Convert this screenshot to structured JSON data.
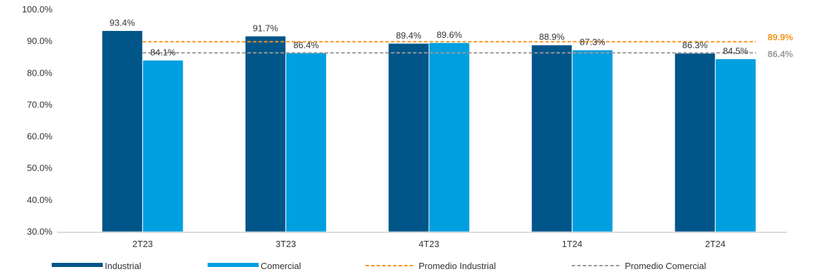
{
  "chart_data": {
    "type": "bar",
    "categories": [
      "2T23",
      "3T23",
      "4T23",
      "1T24",
      "2T24"
    ],
    "series": [
      {
        "name": "Industrial",
        "values": [
          93.4,
          91.7,
          89.4,
          88.9,
          86.3
        ],
        "labels": [
          "93.4%",
          "91.7%",
          "89.4%",
          "88.9%",
          "86.3%"
        ],
        "color": "#005589"
      },
      {
        "name": "Comercial",
        "values": [
          84.1,
          86.4,
          89.6,
          87.3,
          84.5
        ],
        "labels": [
          "84.1%",
          "86.4%",
          "89.6%",
          "87.3%",
          "84.5%"
        ],
        "color": "#009FE0"
      }
    ],
    "averages": [
      {
        "name": "Promedio Industrial",
        "value": 89.9,
        "label": "89.9%",
        "color": "#F7941D"
      },
      {
        "name": "Promedio Comercial",
        "value": 86.4,
        "label": "86.4%",
        "color": "#999999"
      }
    ],
    "ylim": [
      30,
      100
    ],
    "yticks": [
      "30.0%",
      "40.0%",
      "50.0%",
      "60.0%",
      "70.0%",
      "80.0%",
      "90.0%",
      "100.0%"
    ],
    "ytick_values": [
      30,
      40,
      50,
      60,
      70,
      80,
      90,
      100
    ],
    "grid": false,
    "legend_position": "bottom"
  }
}
